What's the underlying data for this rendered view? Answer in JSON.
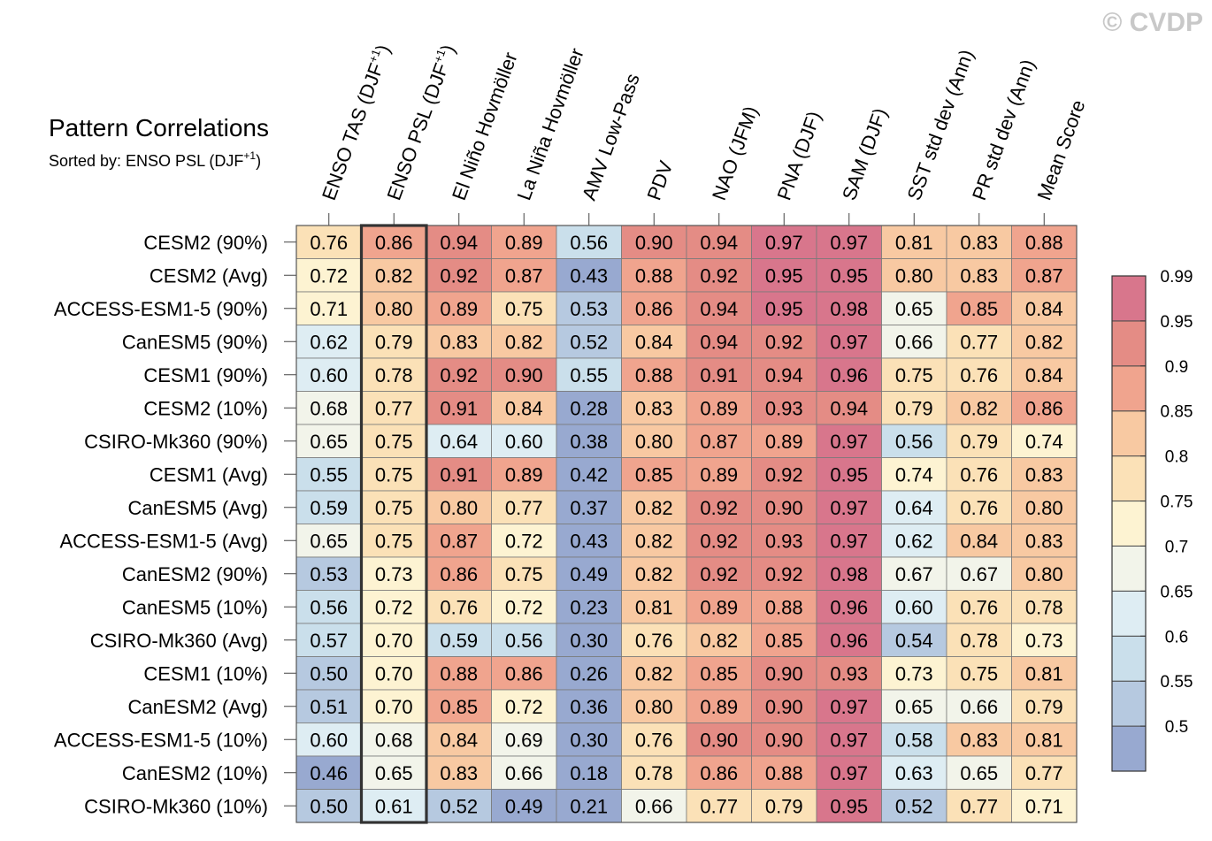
{
  "watermark": "© CVDP",
  "chart_data": {
    "type": "heatmap",
    "title": "Pattern Correlations",
    "subtitle": {
      "prefix": "Sorted by: ENSO PSL (DJF",
      "sup": "+1",
      "suffix": ")"
    },
    "sorted_column": 1,
    "columns": [
      {
        "text": "ENSO TAS (DJF",
        "sup": "+1",
        "after": ")"
      },
      {
        "text": "ENSO PSL (DJF",
        "sup": "+1",
        "after": ")"
      },
      {
        "text": "El Niño Hovmöller"
      },
      {
        "text": "La Niña Hovmöller"
      },
      {
        "text": "AMV Low-Pass"
      },
      {
        "text": "PDV"
      },
      {
        "text": "NAO (JFM)"
      },
      {
        "text": "PNA (DJF)"
      },
      {
        "text": "SAM (DJF)"
      },
      {
        "text": "SST std dev (Ann)"
      },
      {
        "text": "PR std dev (Ann)"
      },
      {
        "text": "Mean Score"
      }
    ],
    "rows": [
      "CESM2 (90%)",
      "CESM2 (Avg)",
      "ACCESS-ESM1-5 (90%)",
      "CanESM5 (90%)",
      "CESM1 (90%)",
      "CESM2 (10%)",
      "CSIRO-Mk360 (90%)",
      "CESM1 (Avg)",
      "CanESM5 (Avg)",
      "ACCESS-ESM1-5 (Avg)",
      "CanESM2 (90%)",
      "CanESM5 (10%)",
      "CSIRO-Mk360 (Avg)",
      "CESM1 (10%)",
      "CanESM2 (Avg)",
      "ACCESS-ESM1-5 (10%)",
      "CanESM2 (10%)",
      "CSIRO-Mk360 (10%)"
    ],
    "values": [
      [
        "0.76",
        "0.86",
        "0.94",
        "0.89",
        "0.56",
        "0.90",
        "0.94",
        "0.97",
        "0.97",
        "0.81",
        "0.83",
        "0.88"
      ],
      [
        "0.72",
        "0.82",
        "0.92",
        "0.87",
        "0.43",
        "0.88",
        "0.92",
        "0.95",
        "0.95",
        "0.80",
        "0.83",
        "0.87"
      ],
      [
        "0.71",
        "0.80",
        "0.89",
        "0.75",
        "0.53",
        "0.86",
        "0.94",
        "0.95",
        "0.98",
        "0.65",
        "0.85",
        "0.84"
      ],
      [
        "0.62",
        "0.79",
        "0.83",
        "0.82",
        "0.52",
        "0.84",
        "0.94",
        "0.92",
        "0.97",
        "0.66",
        "0.77",
        "0.82"
      ],
      [
        "0.60",
        "0.78",
        "0.92",
        "0.90",
        "0.55",
        "0.88",
        "0.91",
        "0.94",
        "0.96",
        "0.75",
        "0.76",
        "0.84"
      ],
      [
        "0.68",
        "0.77",
        "0.91",
        "0.84",
        "0.28",
        "0.83",
        "0.89",
        "0.93",
        "0.94",
        "0.79",
        "0.82",
        "0.86"
      ],
      [
        "0.65",
        "0.75",
        "0.64",
        "0.60",
        "0.38",
        "0.80",
        "0.87",
        "0.89",
        "0.97",
        "0.56",
        "0.79",
        "0.74"
      ],
      [
        "0.55",
        "0.75",
        "0.91",
        "0.89",
        "0.42",
        "0.85",
        "0.89",
        "0.92",
        "0.95",
        "0.74",
        "0.76",
        "0.83"
      ],
      [
        "0.59",
        "0.75",
        "0.80",
        "0.77",
        "0.37",
        "0.82",
        "0.92",
        "0.90",
        "0.97",
        "0.64",
        "0.76",
        "0.80"
      ],
      [
        "0.65",
        "0.75",
        "0.87",
        "0.72",
        "0.43",
        "0.82",
        "0.92",
        "0.93",
        "0.97",
        "0.62",
        "0.84",
        "0.83"
      ],
      [
        "0.53",
        "0.73",
        "0.86",
        "0.75",
        "0.49",
        "0.82",
        "0.92",
        "0.92",
        "0.98",
        "0.67",
        "0.67",
        "0.80"
      ],
      [
        "0.56",
        "0.72",
        "0.76",
        "0.72",
        "0.23",
        "0.81",
        "0.89",
        "0.88",
        "0.96",
        "0.60",
        "0.76",
        "0.78"
      ],
      [
        "0.57",
        "0.70",
        "0.59",
        "0.56",
        "0.30",
        "0.76",
        "0.82",
        "0.85",
        "0.96",
        "0.54",
        "0.78",
        "0.73"
      ],
      [
        "0.50",
        "0.70",
        "0.88",
        "0.86",
        "0.26",
        "0.82",
        "0.85",
        "0.90",
        "0.93",
        "0.73",
        "0.75",
        "0.81"
      ],
      [
        "0.51",
        "0.70",
        "0.85",
        "0.72",
        "0.36",
        "0.80",
        "0.89",
        "0.90",
        "0.97",
        "0.65",
        "0.66",
        "0.79"
      ],
      [
        "0.60",
        "0.68",
        "0.84",
        "0.69",
        "0.30",
        "0.76",
        "0.90",
        "0.90",
        "0.97",
        "0.58",
        "0.83",
        "0.81"
      ],
      [
        "0.46",
        "0.65",
        "0.83",
        "0.66",
        "0.18",
        "0.78",
        "0.86",
        "0.88",
        "0.97",
        "0.63",
        "0.65",
        "0.77"
      ],
      [
        "0.50",
        "0.61",
        "0.52",
        "0.49",
        "0.21",
        "0.66",
        "0.77",
        "0.79",
        "0.95",
        "0.52",
        "0.77",
        "0.71"
      ]
    ],
    "colorbar": {
      "levels": [
        0.5,
        0.55,
        0.6,
        0.65,
        0.7,
        0.75,
        0.8,
        0.85,
        0.9,
        0.95,
        0.99
      ],
      "tick_labels": [
        "0.5",
        "0.55",
        "0.6",
        "0.65",
        "0.7",
        "0.75",
        "0.8",
        "0.85",
        "0.9",
        "0.95",
        "0.99"
      ],
      "colors": [
        "#98a9d0",
        "#b6c9e0",
        "#cadfeb",
        "#deedf3",
        "#f2f4ea",
        "#fdf3d2",
        "#fbe1b7",
        "#f8c9a2",
        "#f0a48e",
        "#e48c85",
        "#d8768c"
      ],
      "placement": "right"
    }
  }
}
